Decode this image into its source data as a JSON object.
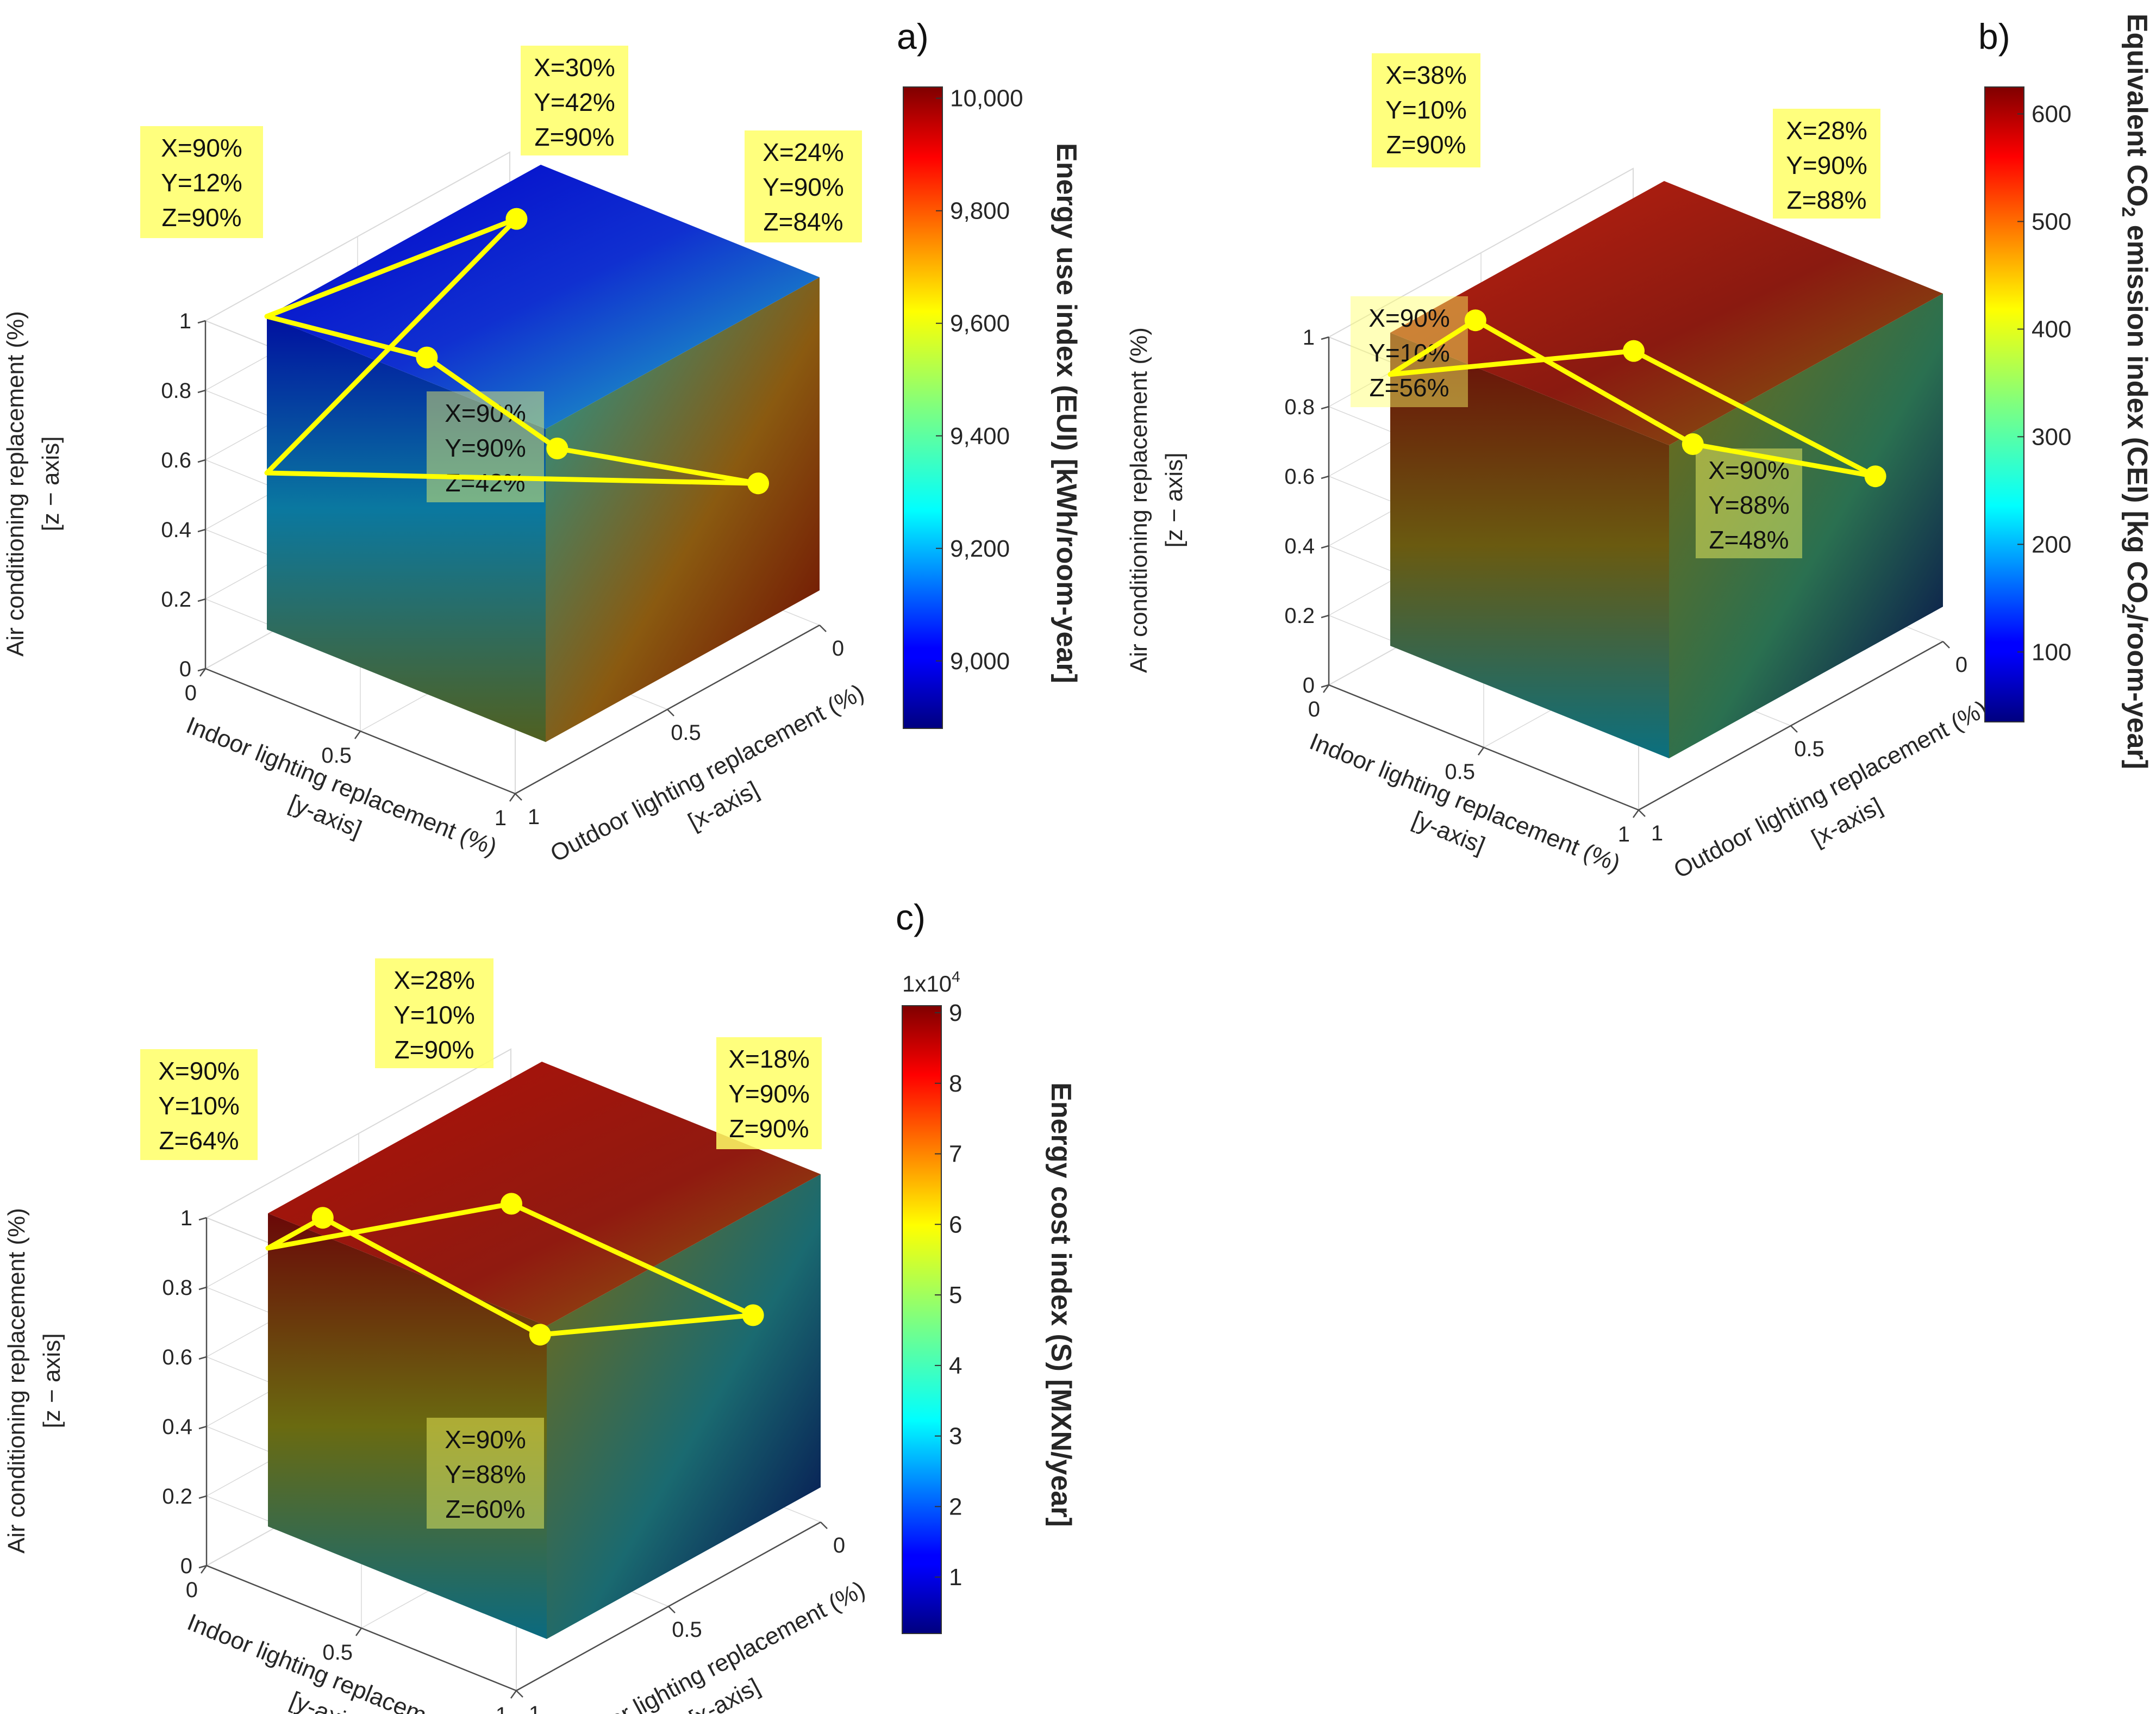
{
  "chart_data": [
    {
      "type": "3d-volume-slice",
      "panel_label": "a)",
      "xlabel": "Outdoor lighting replacement (%)",
      "xlabel_sub": "[x-axis]",
      "ylabel": "Indoor lighting replacement (%)",
      "ylabel_sub": "[y-axis]",
      "zlabel": "Air conditioning replacement (%)",
      "zlabel_sub": "[z − axis]",
      "x_ticks": [
        "0",
        "0.5",
        "1"
      ],
      "y_ticks": [
        "0",
        "0.5",
        "1"
      ],
      "z_ticks": [
        "0",
        "0.2",
        "0.4",
        "0.6",
        "0.8",
        "1"
      ],
      "xlim": [
        0,
        1
      ],
      "ylim": [
        0,
        1
      ],
      "zlim": [
        0,
        1
      ],
      "colorbar": {
        "label": "Energy use index  (EUI) [kWh/room-year]",
        "min": 8880,
        "max": 10020,
        "ticks": [
          "9,000",
          "9,200",
          "9,400",
          "9,600",
          "9,800",
          "10,000"
        ],
        "tick_values": [
          9000,
          9200,
          9400,
          9600,
          9800,
          10000
        ],
        "colormap": "jet"
      },
      "points": [
        {
          "x": 0.9,
          "y": 0.12,
          "z": 0.9,
          "lines": [
            "X=90%",
            "Y=12%",
            "Z=90%"
          ]
        },
        {
          "x": 0.3,
          "y": 0.42,
          "z": 0.9,
          "lines": [
            "X=30%",
            "Y=42%",
            "Z=90%"
          ]
        },
        {
          "x": 0.24,
          "y": 0.9,
          "z": 0.84,
          "lines": [
            "X=24%",
            "Y=90%",
            "Z=84%"
          ]
        },
        {
          "x": 0.9,
          "y": 0.9,
          "z": 0.42,
          "lines": [
            "X=90%",
            "Y=90%",
            "Z=42%"
          ]
        }
      ]
    },
    {
      "type": "3d-volume-slice",
      "panel_label": "b)",
      "xlabel": "Outdoor lighting replacement (%)",
      "xlabel_sub": "[x-axis]",
      "ylabel": "Indoor lighting replacement (%)",
      "ylabel_sub": "[y-axis]",
      "zlabel": "Air conditioning replacement (%)",
      "zlabel_sub": "[z − axis]",
      "x_ticks": [
        "0",
        "0.5",
        "1"
      ],
      "y_ticks": [
        "0",
        "0.5",
        "1"
      ],
      "z_ticks": [
        "0",
        "0.2",
        "0.4",
        "0.6",
        "0.8",
        "1"
      ],
      "xlim": [
        0,
        1
      ],
      "ylim": [
        0,
        1
      ],
      "zlim": [
        0,
        1
      ],
      "colorbar": {
        "label_main": "Equivalent CO",
        "label_sub": "2",
        "label_mid": " emission index (CEI) [kg CO",
        "label_sub2": "2",
        "label_end": "/room-year]",
        "min": 35,
        "max": 625,
        "ticks": [
          "100",
          "200",
          "300",
          "400",
          "500",
          "600"
        ],
        "tick_values": [
          100,
          200,
          300,
          400,
          500,
          600
        ],
        "colormap": "jet"
      },
      "points": [
        {
          "x": 0.38,
          "y": 0.1,
          "z": 0.9,
          "lines": [
            "X=38%",
            "Y=10%",
            "Z=90%"
          ]
        },
        {
          "x": 0.28,
          "y": 0.9,
          "z": 0.88,
          "lines": [
            "X=28%",
            "Y=90%",
            "Z=88%"
          ]
        },
        {
          "x": 0.9,
          "y": 0.1,
          "z": 0.56,
          "lines": [
            "X=90%",
            "Y=10%",
            "Z=56%"
          ]
        },
        {
          "x": 0.9,
          "y": 0.88,
          "z": 0.48,
          "lines": [
            "X=90%",
            "Y=88%",
            "Z=48%"
          ]
        }
      ]
    },
    {
      "type": "3d-volume-slice",
      "panel_label": "c)",
      "xlabel": "Outdoor lighting replacement (%)",
      "xlabel_sub": "[x-axis]",
      "ylabel": "Indoor lighting replacement (%)",
      "ylabel_sub": "[y-axis]",
      "zlabel": "Air conditioning replacement (%)",
      "zlabel_sub": "[z − axis]",
      "x_ticks": [
        "0",
        "0.5",
        "1"
      ],
      "y_ticks": [
        "0",
        "0.5",
        "1"
      ],
      "z_ticks": [
        "0",
        "0.2",
        "0.4",
        "0.6",
        "0.8",
        "1"
      ],
      "xlim": [
        0,
        1
      ],
      "ylim": [
        0,
        1
      ],
      "zlim": [
        0,
        1
      ],
      "colorbar": {
        "label": "Energy cost index (S) [MXN/year]",
        "multiplier_base": "1x10",
        "multiplier_exp": "4",
        "min": 0.2,
        "max": 9.1,
        "ticks": [
          "1",
          "2",
          "3",
          "4",
          "5",
          "6",
          "7",
          "8",
          "9"
        ],
        "tick_values": [
          1,
          2,
          3,
          4,
          5,
          6,
          7,
          8,
          9
        ],
        "colormap": "jet"
      },
      "points": [
        {
          "x": 0.9,
          "y": 0.1,
          "z": 0.64,
          "lines": [
            "X=90%",
            "Y=10%",
            "Z=64%"
          ]
        },
        {
          "x": 0.28,
          "y": 0.1,
          "z": 0.9,
          "lines": [
            "X=28%",
            "Y=10%",
            "Z=90%"
          ]
        },
        {
          "x": 0.18,
          "y": 0.9,
          "z": 0.9,
          "lines": [
            "X=18%",
            "Y=90%",
            "Z=90%"
          ]
        },
        {
          "x": 0.9,
          "y": 0.88,
          "z": 0.6,
          "lines": [
            "X=90%",
            "Y=88%",
            "Z=60%"
          ]
        }
      ]
    }
  ],
  "colors": {
    "marker": "#ffff00",
    "annotation_fill": "#ffff66",
    "axis": "#4d4d4d",
    "grid": "#d9d9d9"
  }
}
